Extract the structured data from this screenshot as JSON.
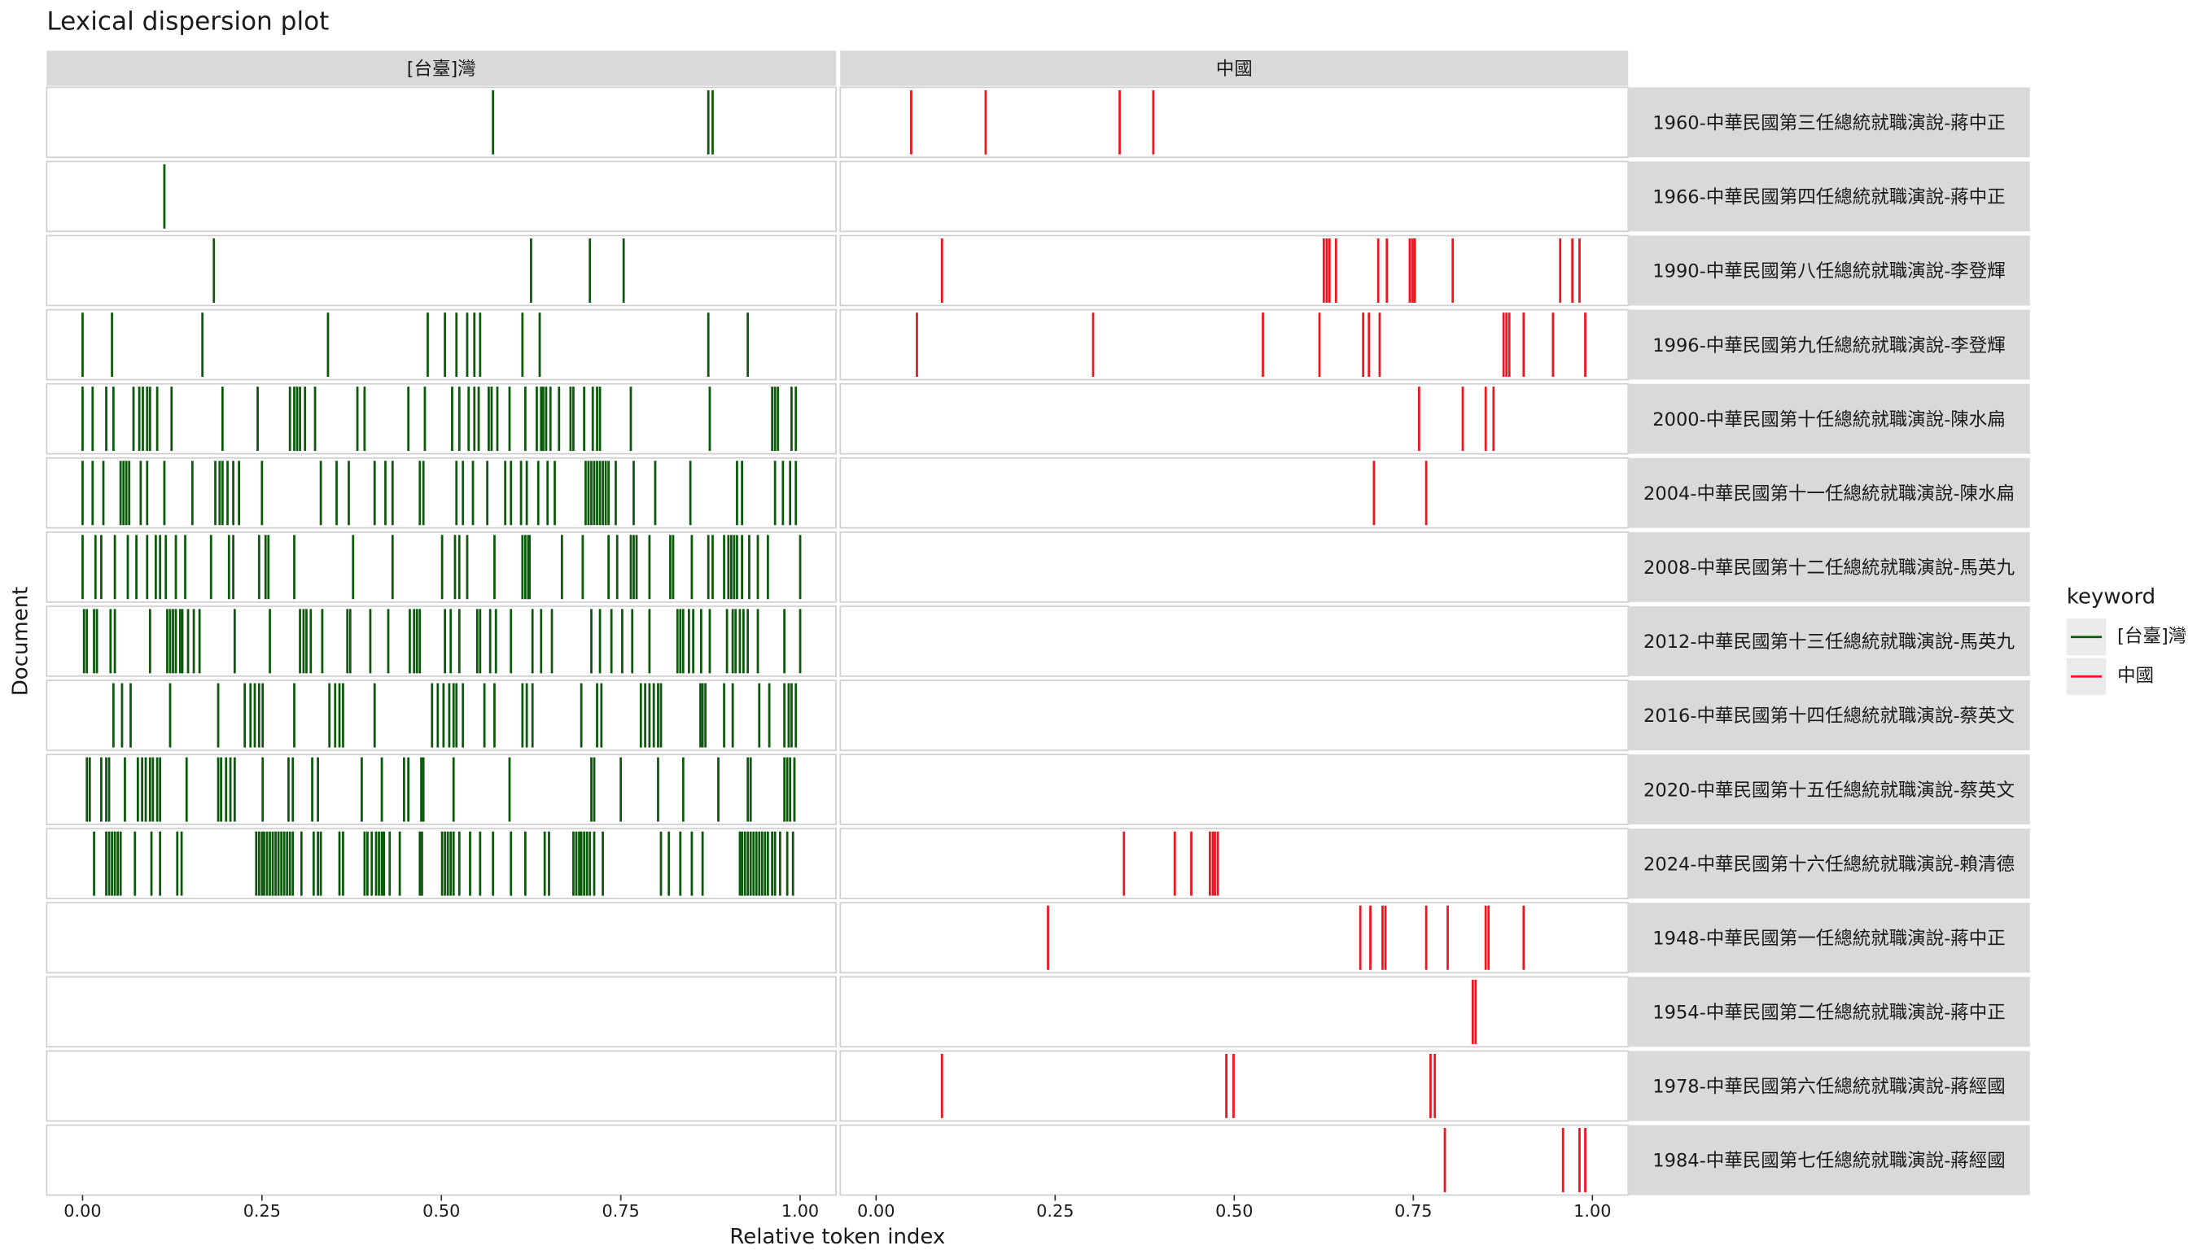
{
  "chart_data": {
    "type": "dispersion",
    "title": "Lexical dispersion plot",
    "xlabel": "Relative token index",
    "ylabel": "Document",
    "legend_title": "keyword",
    "documents": [
      "1960-中華民國第三任總統就職演說-蔣中正",
      "1966-中華民國第四任總統就職演說-蔣中正",
      "1990-中華民國第八任總統就職演說-李登輝",
      "1996-中華民國第九任總統就職演說-李登輝",
      "2000-中華民國第十任總統就職演說-陳水扁",
      "2004-中華民國第十一任總統就職演說-陳水扁",
      "2008-中華民國第十二任總統就職演說-馬英九",
      "2012-中華民國第十三任總統就職演說-馬英九",
      "2016-中華民國第十四任總統就職演說-蔡英文",
      "2020-中華民國第十五任總統就職演說-蔡英文",
      "2024-中華民國第十六任總統就職演說-賴清德",
      "1948-中華民國第一任總統就職演說-蔣中正",
      "1954-中華民國第二任總統就職演說-蔣中正",
      "1978-中華民國第六任總統就職演說-蔣經國",
      "1984-中華民國第七任總統就職演說-蔣經國"
    ],
    "xlim": [
      -0.05,
      1.05
    ],
    "xticks": [
      {
        "value": 0,
        "label": "0.00"
      },
      {
        "value": 0.25,
        "label": "0.25"
      },
      {
        "value": 0.5,
        "label": "0.50"
      },
      {
        "value": 0.75,
        "label": "0.75"
      },
      {
        "value": 1,
        "label": "1.00"
      }
    ],
    "series": [
      {
        "name": "[台臺]灣",
        "color": "#0b5a0b",
        "values": [
          [
            0.572,
            0.872,
            0.878
          ],
          [
            0.114
          ],
          [
            0.183,
            0.625,
            0.707,
            0.754
          ],
          [
            0,
            0.041,
            0.167,
            0.342,
            0.481,
            0.505,
            0.521,
            0.536,
            0.546,
            0.554,
            0.613,
            0.637,
            0.872,
            0.927
          ],
          [
            0,
            0.014,
            0.033,
            0.043,
            0.071,
            0.079,
            0.084,
            0.09,
            0.094,
            0.104,
            0.124,
            0.195,
            0.244,
            0.289,
            0.295,
            0.299,
            0.303,
            0.31,
            0.324,
            0.383,
            0.393,
            0.454,
            0.477,
            0.515,
            0.525,
            0.538,
            0.546,
            0.552,
            0.566,
            0.57,
            0.578,
            0.595,
            0.617,
            0.633,
            0.639,
            0.642,
            0.646,
            0.652,
            0.664,
            0.68,
            0.684,
            0.699,
            0.711,
            0.717,
            0.721,
            0.764,
            0.874,
            0.961,
            0.965,
            0.969,
            0.988,
            0.994
          ],
          [
            0,
            0.014,
            0.029,
            0.053,
            0.057,
            0.061,
            0.065,
            0.081,
            0.09,
            0.114,
            0.153,
            0.185,
            0.191,
            0.195,
            0.202,
            0.21,
            0.218,
            0.25,
            0.332,
            0.354,
            0.371,
            0.407,
            0.422,
            0.432,
            0.47,
            0.475,
            0.521,
            0.53,
            0.544,
            0.564,
            0.589,
            0.597,
            0.611,
            0.619,
            0.635,
            0.648,
            0.658,
            0.701,
            0.705,
            0.709,
            0.713,
            0.717,
            0.721,
            0.725,
            0.729,
            0.733,
            0.743,
            0.768,
            0.798,
            0.847,
            0.912,
            0.919,
            0.965,
            0.976,
            0.986,
            0.994
          ],
          [
            0,
            0.018,
            0.026,
            0.045,
            0.063,
            0.075,
            0.09,
            0.102,
            0.108,
            0.116,
            0.13,
            0.143,
            0.179,
            0.204,
            0.21,
            0.246,
            0.255,
            0.259,
            0.295,
            0.377,
            0.432,
            0.501,
            0.519,
            0.525,
            0.536,
            0.574,
            0.613,
            0.617,
            0.621,
            0.623,
            0.668,
            0.697,
            0.733,
            0.745,
            0.764,
            0.768,
            0.772,
            0.79,
            0.819,
            0.823,
            0.849,
            0.872,
            0.878,
            0.894,
            0.9,
            0.904,
            0.908,
            0.912,
            0.919,
            0.929,
            0.941,
            0.955,
            1
          ],
          [
            0.002,
            0.006,
            0.016,
            0.02,
            0.039,
            0.045,
            0.094,
            0.118,
            0.122,
            0.126,
            0.13,
            0.136,
            0.139,
            0.147,
            0.155,
            0.163,
            0.212,
            0.261,
            0.303,
            0.308,
            0.312,
            0.318,
            0.334,
            0.369,
            0.373,
            0.401,
            0.426,
            0.456,
            0.462,
            0.466,
            0.47,
            0.505,
            0.513,
            0.525,
            0.55,
            0.554,
            0.568,
            0.576,
            0.597,
            0.627,
            0.639,
            0.654,
            0.709,
            0.721,
            0.737,
            0.752,
            0.766,
            0.79,
            0.829,
            0.833,
            0.837,
            0.845,
            0.851,
            0.862,
            0.874,
            0.898,
            0.906,
            0.91,
            0.916,
            0.921,
            0.927,
            0.941,
            0.978,
            1
          ],
          [
            0.043,
            0.055,
            0.067,
            0.122,
            0.189,
            0.226,
            0.234,
            0.24,
            0.246,
            0.251,
            0.295,
            0.344,
            0.352,
            0.358,
            0.363,
            0.407,
            0.487,
            0.495,
            0.503,
            0.511,
            0.517,
            0.521,
            0.53,
            0.56,
            0.574,
            0.613,
            0.619,
            0.627,
            0.695,
            0.717,
            0.723,
            0.778,
            0.784,
            0.79,
            0.796,
            0.802,
            0.806,
            0.861,
            0.864,
            0.868,
            0.894,
            0.906,
            0.943,
            0.957,
            0.978,
            0.984,
            0.988,
            0.994
          ],
          [
            0.006,
            0.01,
            0.026,
            0.033,
            0.037,
            0.059,
            0.077,
            0.083,
            0.088,
            0.094,
            0.098,
            0.104,
            0.108,
            0.145,
            0.189,
            0.193,
            0.2,
            0.206,
            0.212,
            0.251,
            0.287,
            0.293,
            0.32,
            0.328,
            0.389,
            0.417,
            0.448,
            0.454,
            0.472,
            0.475,
            0.517,
            0.595,
            0.709,
            0.713,
            0.75,
            0.802,
            0.837,
            0.886,
            0.927,
            0.931,
            0.978,
            0.982,
            0.986,
            0.992
          ],
          [
            0.016,
            0.033,
            0.037,
            0.041,
            0.045,
            0.049,
            0.053,
            0.073,
            0.096,
            0.108,
            0.132,
            0.138,
            0.242,
            0.246,
            0.25,
            0.253,
            0.257,
            0.261,
            0.265,
            0.269,
            0.273,
            0.277,
            0.281,
            0.285,
            0.289,
            0.293,
            0.305,
            0.322,
            0.328,
            0.332,
            0.358,
            0.363,
            0.393,
            0.397,
            0.403,
            0.409,
            0.413,
            0.417,
            0.42,
            0.428,
            0.442,
            0.47,
            0.473,
            0.501,
            0.505,
            0.509,
            0.513,
            0.517,
            0.525,
            0.54,
            0.554,
            0.572,
            0.597,
            0.617,
            0.644,
            0.65,
            0.684,
            0.688,
            0.692,
            0.695,
            0.699,
            0.703,
            0.707,
            0.713,
            0.725,
            0.806,
            0.817,
            0.833,
            0.849,
            0.864,
            0.916,
            0.919,
            0.923,
            0.927,
            0.931,
            0.935,
            0.939,
            0.943,
            0.947,
            0.951,
            0.955,
            0.961,
            0.965,
            0.972,
            0.982,
            0.99
          ],
          [],
          [],
          [],
          []
        ]
      },
      {
        "name": "中國",
        "color": "#f0141e",
        "values": [
          [
            0.049,
            0.153,
            0.34,
            0.387
          ],
          [],
          [
            0.092,
            0.625,
            0.629,
            0.633,
            0.642,
            0.701,
            0.713,
            0.745,
            0.749,
            0.752,
            0.805,
            0.955,
            0.972,
            0.982
          ],
          [
            0.057,
            0.303,
            0.54,
            0.619,
            0.68,
            0.688,
            0.703,
            0.876,
            0.88,
            0.884,
            0.904,
            0.945,
            0.99
          ],
          [
            0.758,
            0.819,
            0.851,
            0.862
          ],
          [
            0.695,
            0.768
          ],
          [],
          [],
          [],
          [],
          [
            0.346,
            0.417,
            0.44,
            0.466,
            0.47,
            0.473,
            0.477
          ],
          [
            0.24,
            0.676,
            0.69,
            0.707,
            0.711,
            0.768,
            0.798,
            0.851,
            0.855,
            0.904
          ],
          [
            0.833,
            0.837
          ],
          [
            0.092,
            0.489,
            0.499,
            0.774,
            0.78
          ],
          [
            0.794,
            0.959,
            0.982,
            0.99
          ]
        ]
      }
    ]
  }
}
